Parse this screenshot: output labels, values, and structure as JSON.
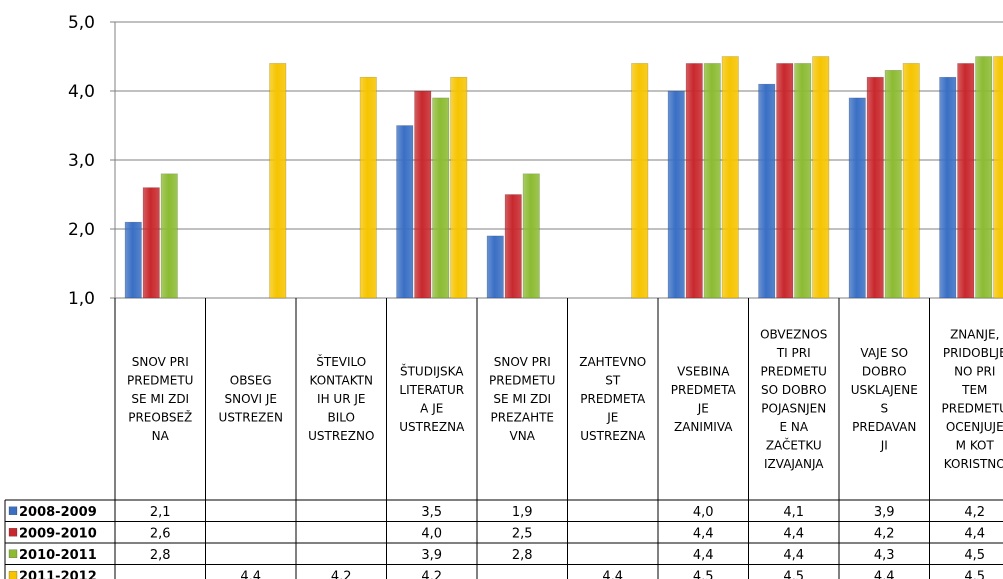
{
  "chart_data": {
    "type": "bar",
    "ylim": [
      1.0,
      5.0
    ],
    "yticks": [
      "1,0",
      "2,0",
      "3,0",
      "4,0",
      "5,0"
    ],
    "categories": [
      [
        "SNOV PRI",
        "PREDMETU",
        "SE MI ZDI",
        "PREOBSEŽ",
        "NA"
      ],
      [
        "OBSEG",
        "SNOVI JE",
        "USTREZEN"
      ],
      [
        "ŠTEVILO",
        "KONTAKTN",
        "IH UR JE",
        "BILO",
        "USTREZNO"
      ],
      [
        "ŠTUDIJSKA",
        "LITERATUR",
        "A JE",
        "USTREZNA"
      ],
      [
        "SNOV PRI",
        "PREDMETU",
        "SE MI ZDI",
        "PREZAHTE",
        "VNA"
      ],
      [
        "ZAHTEVNO",
        "ST",
        "PREDMETA",
        "JE",
        "USTREZNA"
      ],
      [
        "VSEBINA",
        "PREDMETA",
        "JE",
        "ZANIMIVA"
      ],
      [
        "OBVEZNOS",
        "TI PRI",
        "PREDMETU",
        "SO DOBRO",
        "POJASNJEN",
        "E NA",
        "ZAČETKU",
        "IZVAJANJA"
      ],
      [
        "VAJE SO",
        "DOBRO",
        "USKLAJENE",
        "S",
        "PREDAVAN",
        "JI"
      ],
      [
        "ZNANJE,",
        "PRIDOBLJE",
        "NO PRI",
        "TEM",
        "PREDMETU",
        "OCENJUJE",
        "M KOT",
        "KORISTNO"
      ]
    ],
    "series": [
      {
        "name": "2008-2009",
        "color": "#3a6fc4",
        "values": [
          2.1,
          null,
          null,
          3.5,
          1.9,
          null,
          4.0,
          4.1,
          3.9,
          4.2
        ],
        "labels": [
          "2,1",
          "",
          "",
          "3,5",
          "1,9",
          "",
          "4,0",
          "4,1",
          "3,9",
          "4,2"
        ]
      },
      {
        "name": "2009-2010",
        "color": "#c8282d",
        "values": [
          2.6,
          null,
          null,
          4.0,
          2.5,
          null,
          4.4,
          4.4,
          4.2,
          4.4
        ],
        "labels": [
          "2,6",
          "",
          "",
          "4,0",
          "2,5",
          "",
          "4,4",
          "4,4",
          "4,2",
          "4,4"
        ]
      },
      {
        "name": "2010-2011",
        "color": "#8cbb33",
        "values": [
          2.8,
          null,
          null,
          3.9,
          2.8,
          null,
          4.4,
          4.4,
          4.3,
          4.5
        ],
        "labels": [
          "2,8",
          "",
          "",
          "3,9",
          "2,8",
          "",
          "4,4",
          "4,4",
          "4,3",
          "4,5"
        ]
      },
      {
        "name": "2011-2012",
        "color": "#f6c400",
        "values": [
          null,
          4.4,
          4.2,
          4.2,
          null,
          4.4,
          4.5,
          4.5,
          4.4,
          4.5
        ],
        "labels": [
          "",
          "4,4",
          "4,2",
          "4,2",
          "",
          "4,4",
          "4,5",
          "4,5",
          "4,4",
          "4,5"
        ]
      }
    ]
  }
}
